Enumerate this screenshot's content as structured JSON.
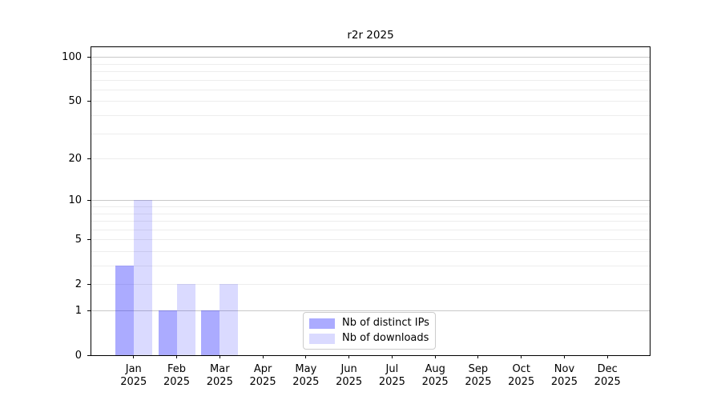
{
  "figure": {
    "background": "#ffffff"
  },
  "chart_data": {
    "type": "bar",
    "title": "r2r 2025",
    "categories": [
      "Jan",
      "Feb",
      "Mar",
      "Apr",
      "May",
      "Jun",
      "Jul",
      "Aug",
      "Sep",
      "Oct",
      "Nov",
      "Dec"
    ],
    "year_label": "2025",
    "series": [
      {
        "name": "Nb of distinct IPs",
        "color": "rgba(0,0,255,0.33)",
        "values": [
          3,
          1,
          1,
          0,
          0,
          0,
          0,
          0,
          0,
          0,
          0,
          0
        ]
      },
      {
        "name": "Nb of downloads",
        "color": "rgba(0,0,255,0.145)",
        "values": [
          10,
          2,
          2,
          0,
          0,
          0,
          0,
          0,
          0,
          0,
          0,
          0
        ]
      }
    ],
    "xlabel": "",
    "ylabel": "",
    "y_axis": {
      "scale": "log1p",
      "tick_values": [
        0,
        1,
        2,
        5,
        10,
        20,
        50,
        100
      ],
      "major_gridlines": [
        1,
        10,
        100
      ],
      "minor_gridlines": [
        2,
        3,
        4,
        5,
        6,
        7,
        8,
        9,
        20,
        30,
        40,
        50,
        60,
        70,
        80,
        90
      ],
      "ylim": [
        0,
        117
      ]
    },
    "grid": "on",
    "legend_position": "lower center",
    "colors": {
      "major_grid": "#c9c9c9",
      "minor_grid": "#ededed",
      "spine": "#000000",
      "text": "#000000"
    }
  }
}
